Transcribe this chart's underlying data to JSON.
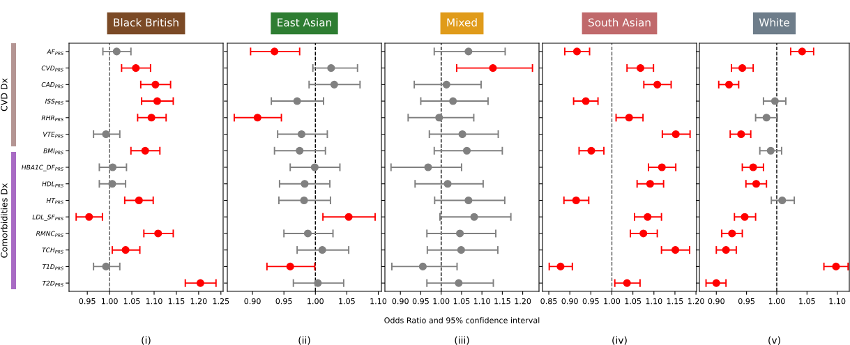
{
  "chart_data": [
    {
      "type": "scatter",
      "orientation": "horizontal",
      "title": "Black British",
      "marker": "circle",
      "legend": false,
      "grid": false,
      "categories": [
        "AF$_{PRS}$",
        "CVD$_{PRS}$",
        "CAD$_{PRS}$",
        "ISS$_{PRS}$",
        "RHR$_{PRS}$",
        "VTE$_{PRS}$",
        "BMI$_{PRS}$",
        "HBA1C_DF$_{PRS}$",
        "HDL$_{PRS}$",
        "HT$_{PRS}$",
        "LDL_SF$_{PRS}$",
        "RMNC$_{PRS}$",
        "TCH$_{PRS}$",
        "T1D$_{PRS}$",
        "T2D$_{PRS}$"
      ],
      "values": [
        1.016,
        1.059,
        1.103,
        1.107,
        1.094,
        0.992,
        1.08,
        1.007,
        1.006,
        1.066,
        0.954,
        1.109,
        1.036,
        0.992,
        1.204
      ],
      "errors": [
        [
          0.985,
          1.048
        ],
        [
          1.027,
          1.092
        ],
        [
          1.07,
          1.137
        ],
        [
          1.072,
          1.143
        ],
        [
          1.063,
          1.127
        ],
        [
          0.964,
          1.023
        ],
        [
          1.048,
          1.113
        ],
        [
          0.977,
          1.038
        ],
        [
          0.977,
          1.036
        ],
        [
          1.034,
          1.098
        ],
        [
          0.925,
          0.984
        ],
        [
          1.077,
          1.143
        ],
        [
          1.006,
          1.068
        ],
        [
          0.964,
          1.023
        ],
        [
          1.17,
          1.239
        ]
      ],
      "colors": [
        "#808080",
        "#ff0000",
        "#ff0000",
        "#ff0000",
        "#ff0000",
        "#808080",
        "#ff0000",
        "#808080",
        "#808080",
        "#ff0000",
        "#ff0000",
        "#ff0000",
        "#ff0000",
        "#808080",
        "#ff0000"
      ],
      "xlim": [
        0.909,
        1.255
      ],
      "xticks": [
        {
          "value": 0.95,
          "label": "0.95"
        },
        {
          "value": 1.0,
          "label": "1.00"
        },
        {
          "value": 1.05,
          "label": "1.05"
        },
        {
          "value": 1.1,
          "label": "1.10"
        },
        {
          "value": 1.15,
          "label": "1.15"
        },
        {
          "value": 1.2,
          "label": "1.20"
        },
        {
          "value": 1.25,
          "label": "1.25"
        }
      ],
      "ref_lines": [
        {
          "axis": "x",
          "value": 1.0,
          "color": "#555555",
          "line_style": "dashed"
        }
      ],
      "annotations": [
        "CVD Dx",
        "Comorbidities Dx",
        "(i)"
      ]
    },
    {
      "type": "scatter",
      "orientation": "horizontal",
      "title": "East Asian",
      "marker": "circle",
      "legend": false,
      "grid": false,
      "tick_labels": "x",
      "categories": [
        null,
        null,
        null,
        null,
        null,
        null,
        null,
        null,
        null,
        null,
        null,
        null,
        null,
        null,
        null
      ],
      "values": [
        0.935,
        1.025,
        1.03,
        0.971,
        0.908,
        0.978,
        0.975,
        0.999,
        0.983,
        0.982,
        1.053,
        0.988,
        1.011,
        0.96,
        1.004
      ],
      "errors": [
        [
          0.897,
          0.975
        ],
        [
          0.996,
          1.067
        ],
        [
          0.99,
          1.071
        ],
        [
          0.93,
          1.013
        ],
        [
          0.871,
          0.946
        ],
        [
          0.94,
          1.019
        ],
        [
          0.935,
          1.016
        ],
        [
          0.96,
          1.039
        ],
        [
          0.943,
          1.023
        ],
        [
          0.942,
          1.024
        ],
        [
          1.012,
          1.095
        ],
        [
          0.95,
          1.028
        ],
        [
          0.971,
          1.053
        ],
        [
          0.923,
          0.999
        ],
        [
          0.965,
          1.045
        ]
      ],
      "colors": [
        "#ff0000",
        "#808080",
        "#808080",
        "#808080",
        "#ff0000",
        "#808080",
        "#808080",
        "#808080",
        "#808080",
        "#808080",
        "#ff0000",
        "#808080",
        "#808080",
        "#ff0000",
        "#808080"
      ],
      "xlim": [
        0.86,
        1.105
      ],
      "xticks": [
        {
          "value": 0.9,
          "label": "0.90"
        },
        {
          "value": 0.95,
          "label": "0.95"
        },
        {
          "value": 1.0,
          "label": "1.00"
        },
        {
          "value": 1.05,
          "label": "1.05"
        },
        {
          "value": 1.1,
          "label": "1.10"
        }
      ],
      "ref_lines": [
        {
          "axis": "x",
          "value": 1.0,
          "color": "#000000",
          "line_style": "dashed"
        }
      ],
      "annotations": [
        "(ii)"
      ]
    },
    {
      "type": "scatter",
      "orientation": "horizontal",
      "title": "Mixed",
      "marker": "circle",
      "legend": false,
      "grid": false,
      "tick_labels": "x",
      "xlabel": "Odds Ratio and 95% confidence interval",
      "categories": [
        null,
        null,
        null,
        null,
        null,
        null,
        null,
        null,
        null,
        null,
        null,
        null,
        null,
        null,
        null
      ],
      "values": [
        1.067,
        1.127,
        1.013,
        1.029,
        0.995,
        1.052,
        1.063,
        0.968,
        1.016,
        1.067,
        1.081,
        1.046,
        1.049,
        0.955,
        1.043
      ],
      "errors": [
        [
          0.983,
          1.157
        ],
        [
          1.038,
          1.224
        ],
        [
          0.934,
          1.098
        ],
        [
          0.95,
          1.115
        ],
        [
          0.919,
          1.08
        ],
        [
          0.971,
          1.14
        ],
        [
          0.983,
          1.15
        ],
        [
          0.877,
          1.05
        ],
        [
          0.936,
          1.103
        ],
        [
          0.984,
          1.156
        ],
        [
          0.997,
          1.171
        ],
        [
          0.965,
          1.134
        ],
        [
          0.966,
          1.139
        ],
        [
          0.879,
          1.039
        ],
        [
          0.965,
          1.128
        ]
      ],
      "colors": [
        "#808080",
        "#ff0000",
        "#808080",
        "#808080",
        "#808080",
        "#808080",
        "#808080",
        "#808080",
        "#808080",
        "#808080",
        "#808080",
        "#808080",
        "#808080",
        "#808080",
        "#808080"
      ],
      "xlim": [
        0.862,
        1.24
      ],
      "xticks": [
        {
          "value": 0.9,
          "label": "0.90"
        },
        {
          "value": 0.95,
          "label": "0.95"
        },
        {
          "value": 1.0,
          "label": "1.00"
        },
        {
          "value": 1.05,
          "label": "1.05"
        },
        {
          "value": 1.1,
          "label": "1.10"
        },
        {
          "value": 1.15,
          "label": "1.15"
        },
        {
          "value": 1.2,
          "label": "1.20"
        }
      ],
      "ref_lines": [
        {
          "axis": "x",
          "value": 1.0,
          "color": "#000000",
          "line_style": "dashed"
        }
      ],
      "annotations": [
        "(iii)"
      ]
    },
    {
      "type": "scatter",
      "orientation": "horizontal",
      "title": "South Asian",
      "marker": "circle",
      "legend": false,
      "grid": false,
      "tick_labels": "x",
      "categories": [
        null,
        null,
        null,
        null,
        null,
        null,
        null,
        null,
        null,
        null,
        null,
        null,
        null,
        null,
        null
      ],
      "values": [
        0.917,
        1.068,
        1.108,
        0.938,
        1.041,
        1.152,
        0.951,
        1.119,
        1.091,
        0.915,
        1.085,
        1.075,
        1.151,
        0.878,
        1.036
      ],
      "errors": [
        [
          0.888,
          0.947
        ],
        [
          1.036,
          1.099
        ],
        [
          1.076,
          1.141
        ],
        [
          0.909,
          0.967
        ],
        [
          1.01,
          1.074
        ],
        [
          1.12,
          1.186
        ],
        [
          0.922,
          0.981
        ],
        [
          1.087,
          1.152
        ],
        [
          1.06,
          1.123
        ],
        [
          0.886,
          0.945
        ],
        [
          1.054,
          1.118
        ],
        [
          1.044,
          1.108
        ],
        [
          1.118,
          1.185
        ],
        [
          0.851,
          0.906
        ],
        [
          1.007,
          1.067
        ]
      ],
      "colors": [
        "#ff0000",
        "#ff0000",
        "#ff0000",
        "#ff0000",
        "#ff0000",
        "#ff0000",
        "#ff0000",
        "#ff0000",
        "#ff0000",
        "#ff0000",
        "#ff0000",
        "#ff0000",
        "#ff0000",
        "#ff0000",
        "#ff0000"
      ],
      "xlim": [
        0.835,
        1.2015
      ],
      "xticks": [
        {
          "value": 0.85,
          "label": "0.85"
        },
        {
          "value": 0.9,
          "label": "0.90"
        },
        {
          "value": 0.95,
          "label": "0.95"
        },
        {
          "value": 1.0,
          "label": "1.00"
        },
        {
          "value": 1.05,
          "label": "1.05"
        },
        {
          "value": 1.1,
          "label": "1.10"
        },
        {
          "value": 1.15,
          "label": "1.15"
        },
        {
          "value": 1.2,
          "label": "1.20"
        }
      ],
      "ref_lines": [
        {
          "axis": "x",
          "value": 1.0,
          "color": "#555555",
          "line_style": "dashed"
        }
      ],
      "annotations": [
        "(iv)"
      ]
    },
    {
      "type": "scatter",
      "orientation": "horizontal",
      "title": "White",
      "marker": "circle",
      "legend": false,
      "grid": false,
      "tick_labels": "x",
      "categories": [
        null,
        null,
        null,
        null,
        null,
        null,
        null,
        null,
        null,
        null,
        null,
        null,
        null,
        null,
        null
      ],
      "values": [
        1.042,
        0.943,
        0.921,
        0.997,
        0.983,
        0.941,
        0.99,
        0.961,
        0.966,
        1.009,
        0.947,
        0.926,
        0.916,
        1.098,
        0.9
      ],
      "errors": [
        [
          1.023,
          1.061
        ],
        [
          0.925,
          0.961
        ],
        [
          0.904,
          0.937
        ],
        [
          0.978,
          1.015
        ],
        [
          0.965,
          1.001
        ],
        [
          0.923,
          0.957
        ],
        [
          0.972,
          1.008
        ],
        [
          0.943,
          0.978
        ],
        [
          0.949,
          0.983
        ],
        [
          0.991,
          1.029
        ],
        [
          0.93,
          0.965
        ],
        [
          0.909,
          0.943
        ],
        [
          0.9,
          0.933
        ],
        [
          1.078,
          1.118
        ],
        [
          0.883,
          0.916
        ]
      ],
      "colors": [
        "#ff0000",
        "#ff0000",
        "#ff0000",
        "#808080",
        "#808080",
        "#ff0000",
        "#808080",
        "#ff0000",
        "#ff0000",
        "#808080",
        "#ff0000",
        "#ff0000",
        "#ff0000",
        "#ff0000",
        "#ff0000"
      ],
      "xlim": [
        0.872,
        1.12
      ],
      "xticks": [
        {
          "value": 0.9,
          "label": "0.90"
        },
        {
          "value": 0.95,
          "label": "0.95"
        },
        {
          "value": 1.0,
          "label": "1.00"
        },
        {
          "value": 1.05,
          "label": "1.05"
        },
        {
          "value": 1.1,
          "label": "1.10"
        }
      ],
      "ref_lines": [
        {
          "axis": "x",
          "value": 1.0,
          "color": "#000000",
          "line_style": "dashed"
        }
      ],
      "annotations": [
        "(v)"
      ]
    }
  ]
}
